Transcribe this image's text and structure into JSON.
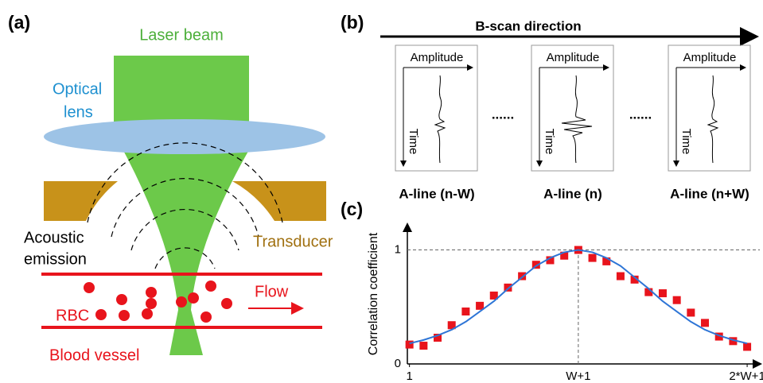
{
  "panel_a": {
    "label": "(a)",
    "laser_beam": "Laser beam",
    "optical_lens": [
      "Optical",
      "lens"
    ],
    "acoustic_emission": [
      "Acoustic",
      "emission"
    ],
    "transducer": "Transducer",
    "flow": "Flow",
    "rbc": "RBC",
    "blood_vessel": "Blood vessel"
  },
  "panel_b": {
    "label": "(b)",
    "direction": "B-scan direction",
    "amplitude": [
      "Amplitude",
      "Amplitude",
      "Amplitude"
    ],
    "time": [
      "Time",
      "Time",
      "Time"
    ],
    "a_lines": [
      "A-line (n-W)",
      "A-line (n)",
      "A-line (n+W)"
    ],
    "ellipsis": [
      "......",
      "......"
    ]
  },
  "chart_data": {
    "type": "scatter",
    "label": "(c)",
    "y_label": "Correlation coefficient",
    "x": [
      1,
      2,
      3,
      4,
      5,
      6,
      7,
      8,
      9,
      10,
      11,
      12,
      13,
      14,
      15,
      16,
      17,
      18,
      19,
      20,
      21,
      22,
      23,
      24,
      25
    ],
    "series": [
      {
        "type": "scatter",
        "color": "#e8141c",
        "values": [
          0.17,
          0.16,
          0.23,
          0.34,
          0.46,
          0.51,
          0.6,
          0.67,
          0.77,
          0.87,
          0.91,
          0.95,
          1.0,
          0.93,
          0.9,
          0.77,
          0.74,
          0.63,
          0.62,
          0.56,
          0.45,
          0.36,
          0.24,
          0.2,
          0.15
        ]
      },
      {
        "type": "line",
        "color": "#2e75d6",
        "values": [
          0.18,
          0.21,
          0.25,
          0.3,
          0.37,
          0.46,
          0.55,
          0.66,
          0.76,
          0.86,
          0.93,
          0.98,
          1.0,
          0.98,
          0.93,
          0.86,
          0.76,
          0.66,
          0.55,
          0.46,
          0.37,
          0.3,
          0.25,
          0.21,
          0.18
        ]
      }
    ],
    "xlim": [
      0.85,
      25.9
    ],
    "ylim": [
      0,
      1.22
    ],
    "xticks": [
      1,
      {
        "value": 13,
        "label": "W+1"
      },
      {
        "value": 25,
        "label": "2*W+1"
      }
    ],
    "yticks": [
      0,
      1
    ]
  }
}
